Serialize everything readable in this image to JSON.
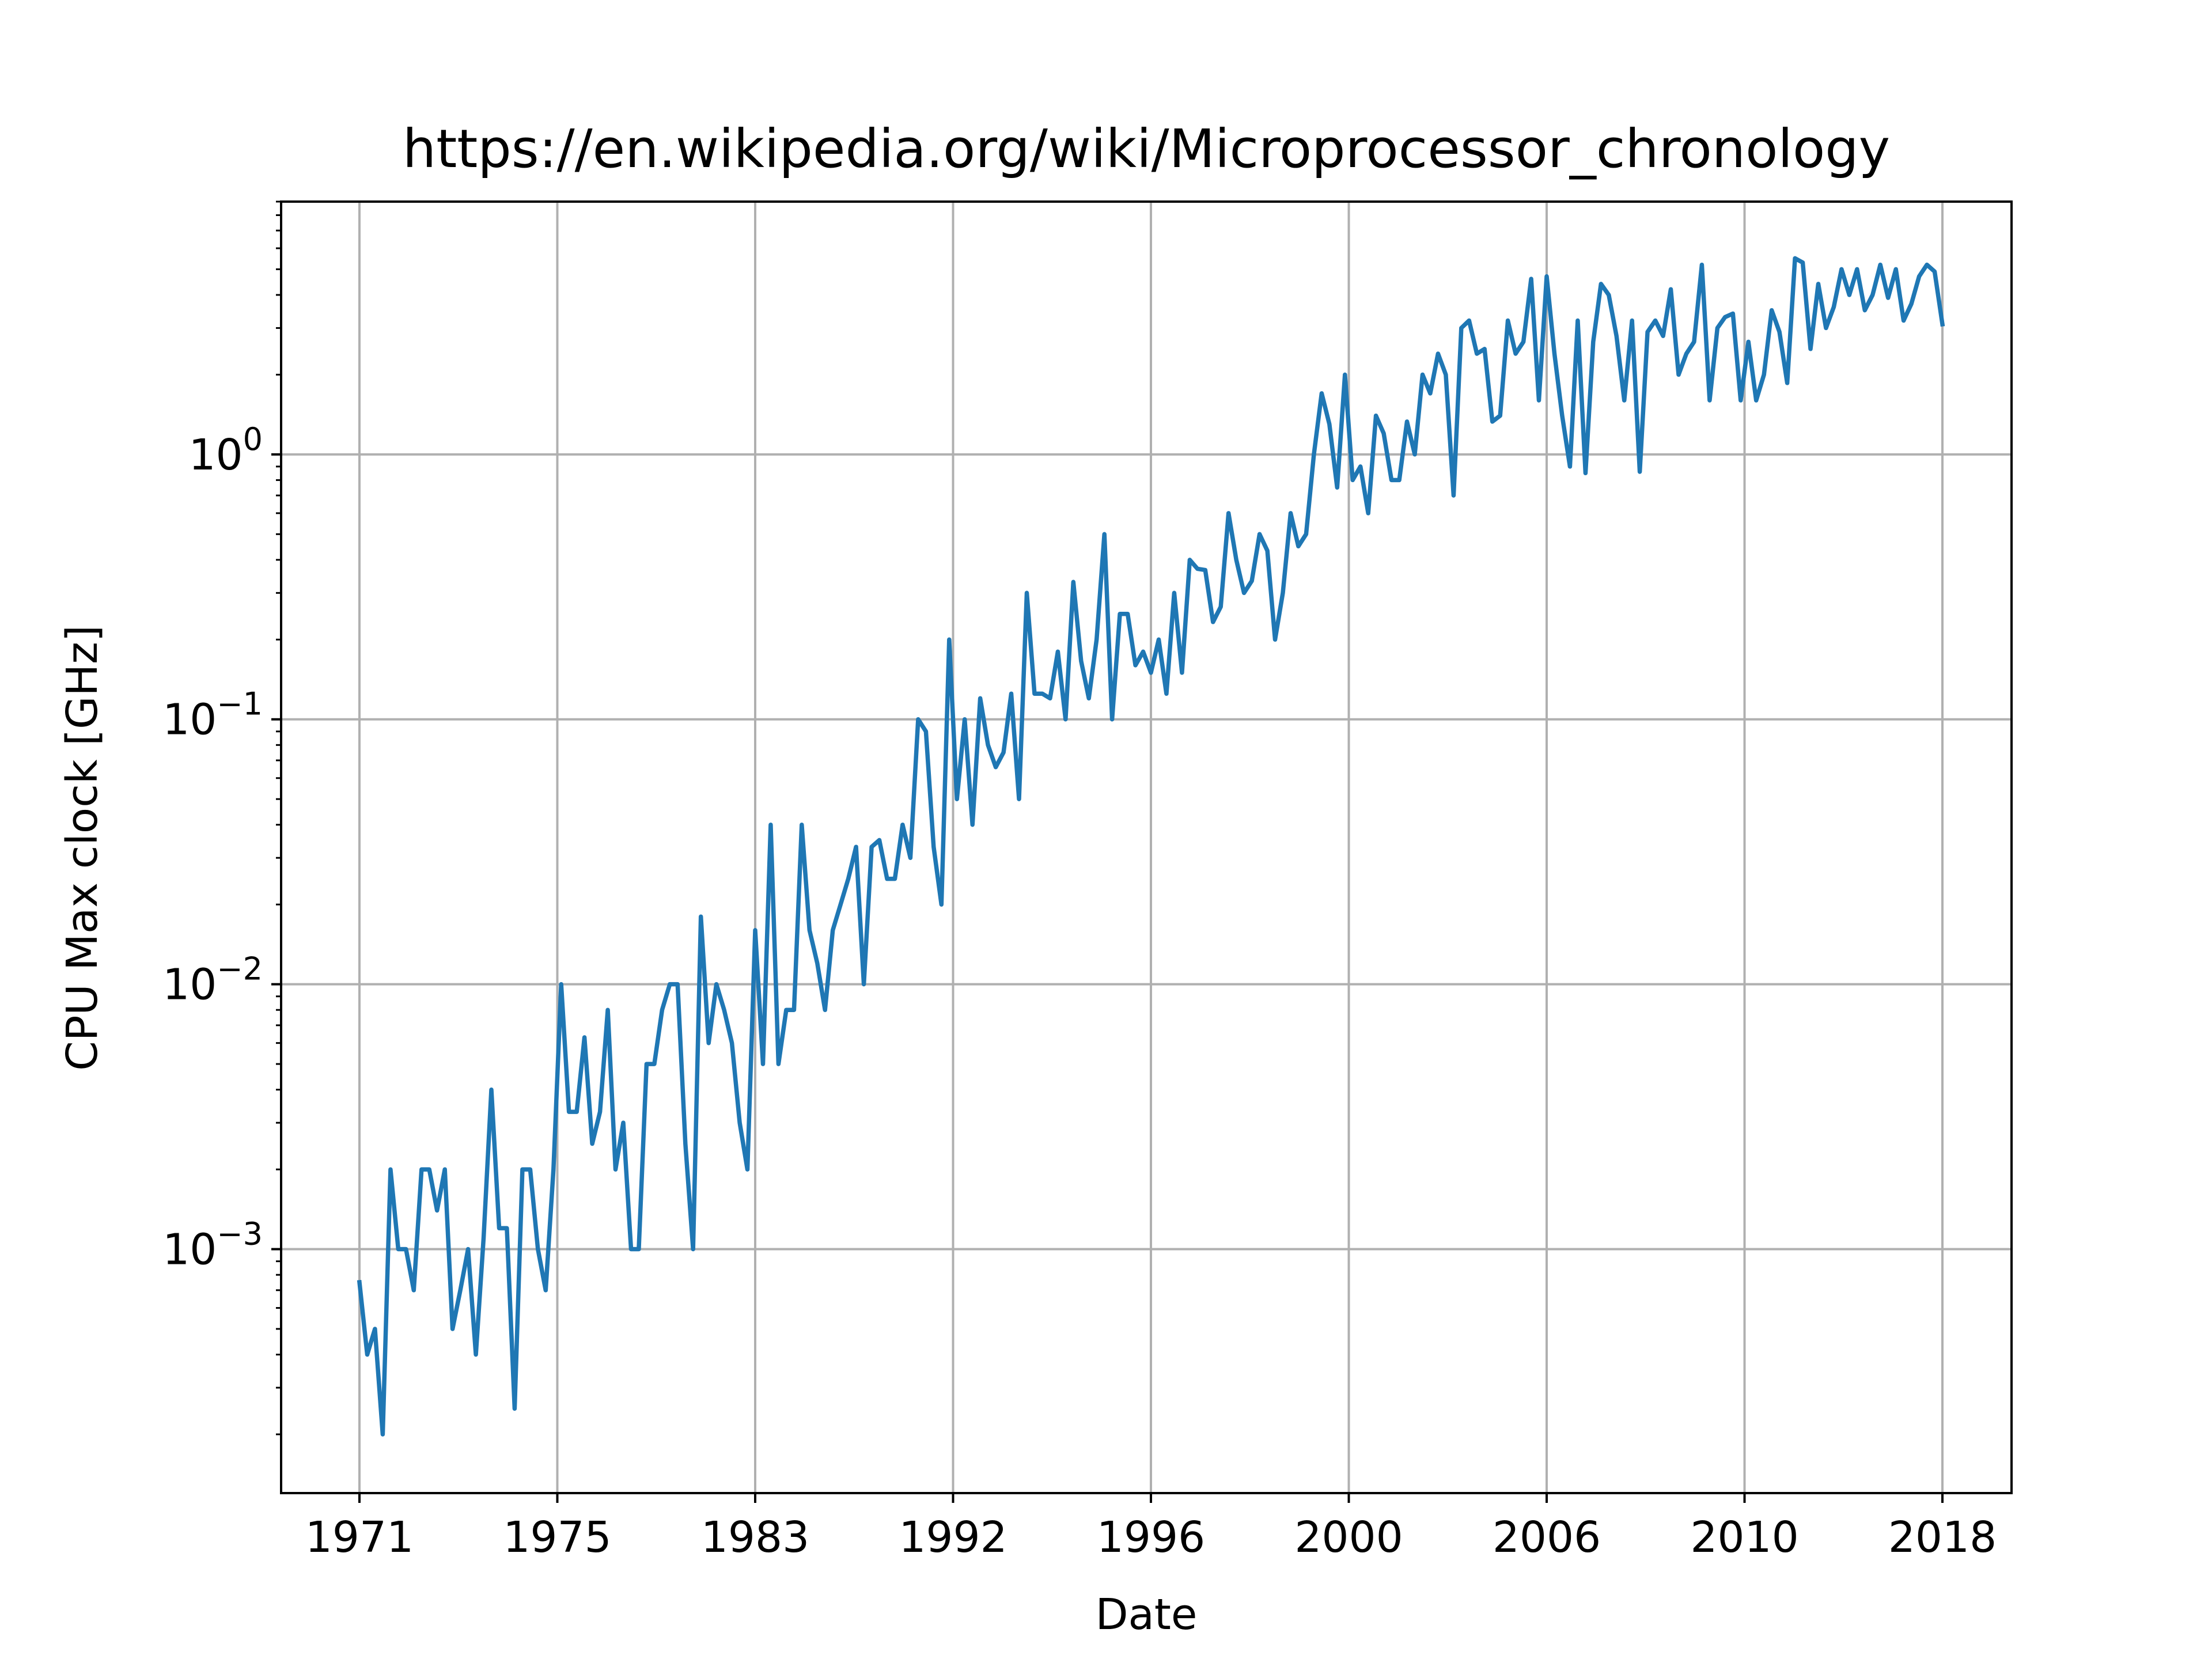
{
  "chart_data": {
    "type": "line",
    "title": "https://en.wikipedia.org/wiki/Microprocessor_chronology",
    "xlabel": "Date",
    "ylabel": "CPU Max clock [GHz]",
    "yscale": "log",
    "ylim": [
      0.00012,
      9
    ],
    "grid": true,
    "x_tick_labels": [
      "1971",
      "1975",
      "1983",
      "1992",
      "1996",
      "2000",
      "2006",
      "2010",
      "2018"
    ],
    "y_ticks": [
      {
        "value": 0.001,
        "base": "10",
        "exp": "−3"
      },
      {
        "value": 0.01,
        "base": "10",
        "exp": "−2"
      },
      {
        "value": 0.1,
        "base": "10",
        "exp": "−1"
      },
      {
        "value": 1,
        "base": "10",
        "exp": "0"
      }
    ],
    "colors": {
      "series": "#1f77b4"
    },
    "series": [
      {
        "values": [
          0.00075,
          0.0004,
          0.0005,
          0.0002,
          0.002,
          0.001,
          0.001,
          0.0007,
          0.002,
          0.002,
          0.0014,
          0.002,
          0.0005,
          0.0007,
          0.001,
          0.0004,
          0.0011,
          0.004,
          0.0012,
          0.0012,
          0.00025,
          0.002,
          0.002,
          0.001,
          0.0007,
          0.002,
          0.01,
          0.0033,
          0.0033,
          0.0063,
          0.0025,
          0.0033,
          0.008,
          0.002,
          0.003,
          0.001,
          0.001,
          0.005,
          0.005,
          0.008,
          0.01,
          0.01,
          0.0025,
          0.001,
          0.018,
          0.006,
          0.01,
          0.008,
          0.006,
          0.003,
          0.002,
          0.016,
          0.005,
          0.04,
          0.005,
          0.008,
          0.008,
          0.04,
          0.016,
          0.012,
          0.008,
          0.016,
          0.02,
          0.025,
          0.033,
          0.01,
          0.033,
          0.035,
          0.025,
          0.025,
          0.04,
          0.03,
          0.1,
          0.09,
          0.033,
          0.02,
          0.2,
          0.05,
          0.1,
          0.04,
          0.12,
          0.08,
          0.066,
          0.075,
          0.125,
          0.05,
          0.3,
          0.125,
          0.125,
          0.12,
          0.18,
          0.1,
          0.33,
          0.166,
          0.12,
          0.2,
          0.5,
          0.1,
          0.25,
          0.25,
          0.16,
          0.18,
          0.15,
          0.2,
          0.125,
          0.3,
          0.15,
          0.4,
          0.37,
          0.366,
          0.233,
          0.266,
          0.6,
          0.4,
          0.3,
          0.333,
          0.5,
          0.433,
          0.2,
          0.3,
          0.6,
          0.45,
          0.5,
          1.0,
          1.7,
          1.3,
          0.75,
          2.0,
          0.8,
          0.9,
          0.6,
          1.4,
          1.2,
          0.8,
          0.8,
          1.33,
          1.0,
          2.0,
          1.7,
          2.4,
          2.0,
          0.7,
          3.0,
          3.2,
          2.4,
          2.5,
          1.33,
          1.4,
          3.2,
          2.4,
          2.66,
          4.6,
          1.6,
          4.7,
          2.4,
          1.4,
          0.9,
          3.2,
          0.85,
          2.66,
          4.4,
          4.0,
          2.8,
          1.6,
          3.2,
          0.86,
          2.9,
          3.2,
          2.8,
          4.2,
          2.0,
          2.4,
          2.66,
          5.2,
          1.6,
          3.0,
          3.3,
          3.4,
          1.6,
          2.66,
          1.6,
          2.0,
          3.5,
          2.9,
          1.86,
          5.5,
          5.3,
          2.5,
          4.4,
          3.0,
          3.6,
          5.0,
          4.0,
          5.0,
          3.5,
          4.0,
          5.2,
          3.9,
          5.0,
          3.2,
          3.7,
          4.7,
          5.2,
          4.9,
          3.1
        ]
      }
    ]
  }
}
